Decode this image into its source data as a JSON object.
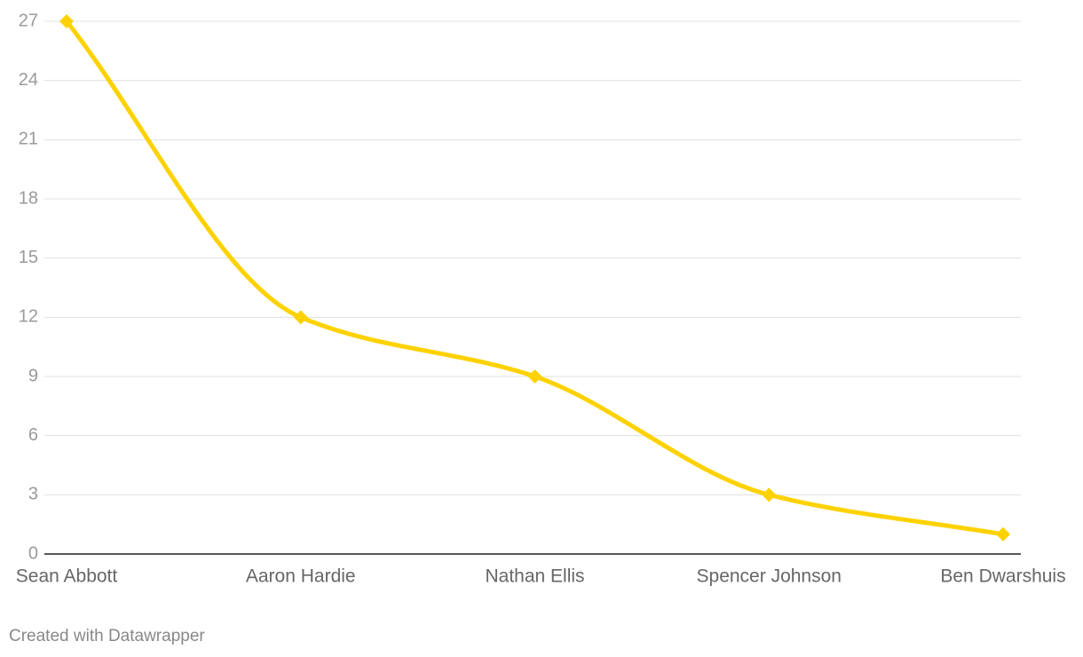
{
  "chart_data": {
    "type": "line",
    "categories": [
      "Sean Abbott",
      "Aaron Hardie",
      "Nathan Ellis",
      "Spencer Johnson",
      "Ben Dwarshuis"
    ],
    "values": [
      27,
      12,
      9,
      3,
      1
    ],
    "color": "#fdd200",
    "ylim": [
      0,
      27
    ],
    "yticks": [
      0,
      3,
      6,
      9,
      12,
      15,
      18,
      21,
      24,
      27
    ],
    "grid": true,
    "footer": "Created with Datawrapper"
  }
}
